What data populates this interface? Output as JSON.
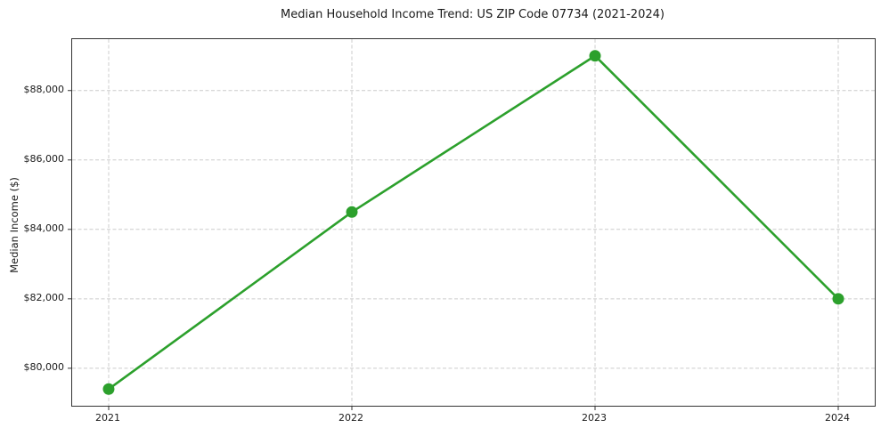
{
  "chart_data": {
    "type": "line",
    "title": "Median Household Income Trend: US ZIP Code 07734 (2021-2024)",
    "xlabel": "",
    "ylabel": "Median Income ($)",
    "categories": [
      "2021",
      "2022",
      "2023",
      "2024"
    ],
    "series": [
      {
        "name": "Median Household Income",
        "values": [
          79400,
          84500,
          89000,
          82000
        ],
        "color": "#2ca02c",
        "marker": "circle",
        "marker_radius": 6.5,
        "line_width": 2.6
      }
    ],
    "ylim": [
      78920,
      89480
    ],
    "yticks": [
      {
        "value": 80000,
        "label": "$80,000"
      },
      {
        "value": 82000,
        "label": "$82,000"
      },
      {
        "value": 84000,
        "label": "$84,000"
      },
      {
        "value": 86000,
        "label": "$86,000"
      },
      {
        "value": 88000,
        "label": "$88,000"
      }
    ],
    "grid": {
      "visible": true,
      "axis": "both",
      "style": "dashed",
      "color": "#cccccc"
    },
    "legend": {
      "visible": false
    },
    "colors": {
      "background": "#ffffff",
      "spine": "#333333",
      "text": "#1a1a1a",
      "tick": "#333333"
    }
  }
}
